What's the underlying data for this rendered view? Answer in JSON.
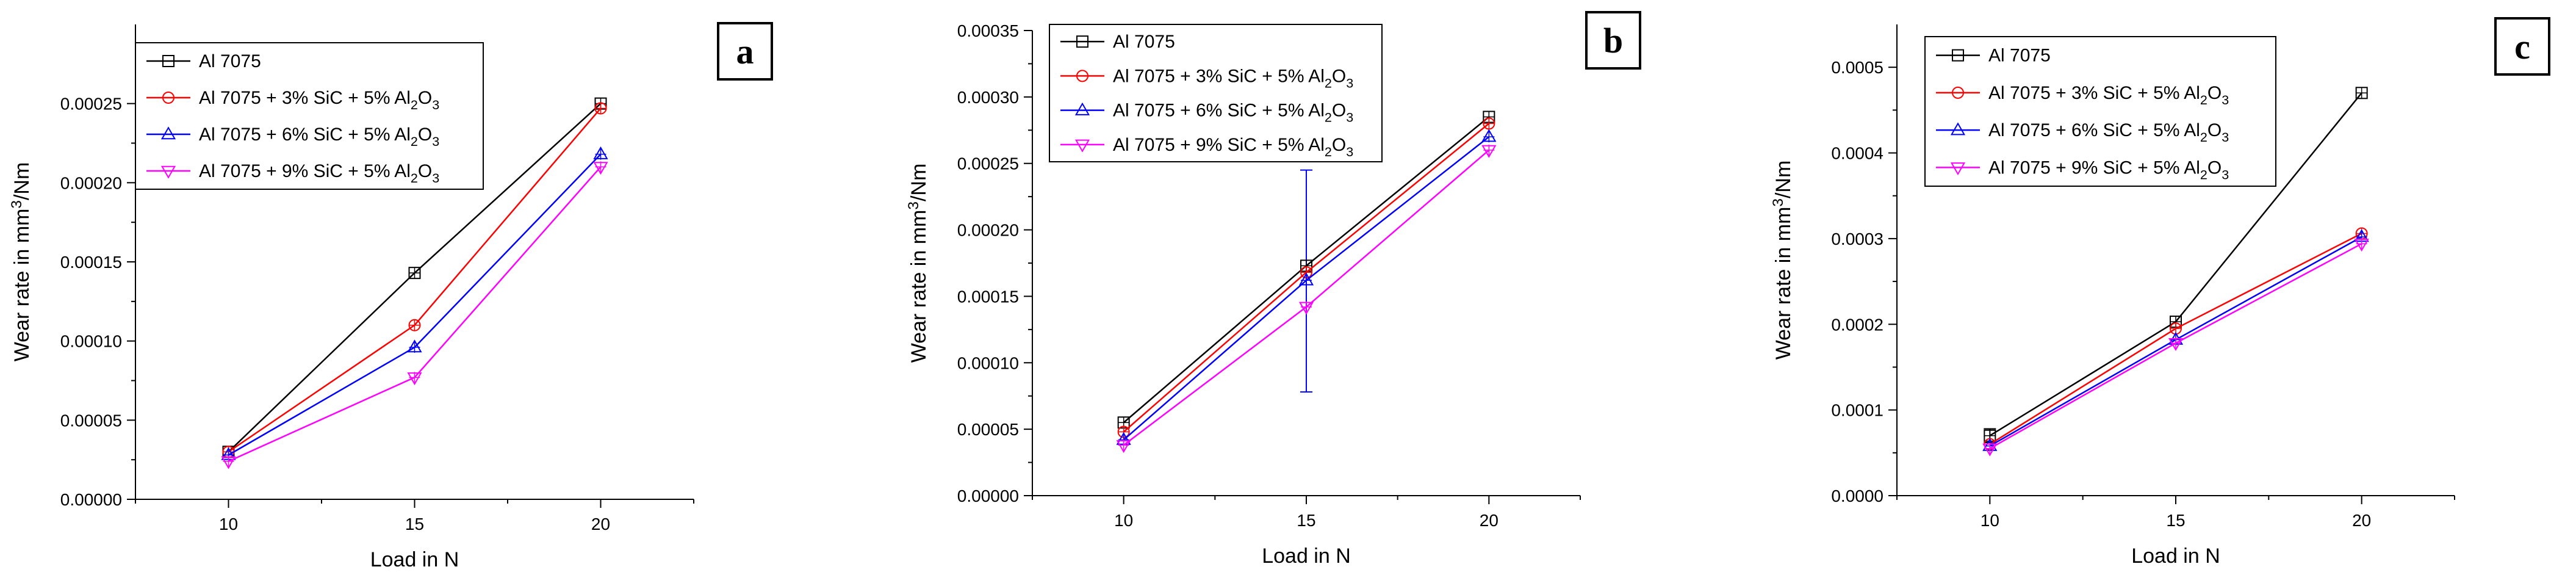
{
  "figure": {
    "series_names": [
      "Al 7075",
      "Al 7075 + 3% SiC + 5% Al2O3",
      "Al 7075 + 6% SiC + 5% Al2O3",
      "Al 7075 + 9% SiC + 5% Al2O3"
    ],
    "series_colors": [
      "#000000",
      "#ff0000",
      "#0000ff",
      "#ff00ff"
    ],
    "series_markers": [
      "square",
      "circle",
      "triangle-up",
      "triangle-down"
    ]
  },
  "chart_data": [
    {
      "panel_label": "a",
      "type": "line",
      "xlabel": "Load in N",
      "ylabel": "Wear rate in mm3/Nm",
      "xlim": [
        7.5,
        22.5
      ],
      "ylim": [
        0,
        0.0003
      ],
      "x_ticks": [
        10,
        15,
        20
      ],
      "y_ticks": [
        0,
        5e-05,
        0.0001,
        0.00015,
        0.0002,
        0.00025
      ],
      "y_tick_labels": [
        "0.00000",
        "0.00005",
        "0.00010",
        "0.00015",
        "0.00020",
        "0.00025"
      ],
      "legend_position": "top-left",
      "x": [
        10,
        15,
        20
      ],
      "series": [
        {
          "name": "Al 7075",
          "values": [
            3e-05,
            0.000143,
            0.00025
          ]
        },
        {
          "name": "Al 7075 + 3% SiC + 5% Al2O3",
          "values": [
            3e-05,
            0.00011,
            0.000247
          ]
        },
        {
          "name": "Al 7075 + 6% SiC + 5% Al2O3",
          "values": [
            2.8e-05,
            9.6e-05,
            0.000218
          ]
        },
        {
          "name": "Al 7075 + 9% SiC + 5% Al2O3",
          "values": [
            2.4e-05,
            7.7e-05,
            0.00021
          ]
        }
      ],
      "error_bars": []
    },
    {
      "panel_label": "b",
      "type": "line",
      "xlabel": "Load in N",
      "ylabel": "Wear rate in mm3/Nm",
      "xlim": [
        7.5,
        22.5
      ],
      "ylim": [
        0,
        0.00035
      ],
      "x_ticks": [
        10,
        15,
        20
      ],
      "y_ticks": [
        0,
        5e-05,
        0.0001,
        0.00015,
        0.0002,
        0.00025,
        0.0003,
        0.00035
      ],
      "y_tick_labels": [
        "0.00000",
        "0.00005",
        "0.00010",
        "0.00015",
        "0.00020",
        "0.00025",
        "0.00030",
        "0.00035"
      ],
      "legend_position": "top-left",
      "x": [
        10,
        15,
        20
      ],
      "series": [
        {
          "name": "Al 7075",
          "values": [
            5.5e-05,
            0.000173,
            0.000285
          ]
        },
        {
          "name": "Al 7075 + 3% SiC + 5% Al2O3",
          "values": [
            4.8e-05,
            0.000168,
            0.00028
          ]
        },
        {
          "name": "Al 7075 + 6% SiC + 5% Al2O3",
          "values": [
            4.2e-05,
            0.000162,
            0.00027
          ]
        },
        {
          "name": "Al 7075 + 9% SiC + 5% Al2O3",
          "values": [
            3.8e-05,
            0.000142,
            0.00026
          ]
        }
      ],
      "error_bars": [
        {
          "series": "Al 7075 + 6% SiC + 5% Al2O3",
          "x": 15,
          "low": 7.8e-05,
          "high": 0.000245
        }
      ]
    },
    {
      "panel_label": "c",
      "type": "line",
      "xlabel": "Load in N",
      "ylabel": "Wear rate in mm3/Nm",
      "xlim": [
        7.5,
        22.5
      ],
      "ylim": [
        0,
        0.00055
      ],
      "x_ticks": [
        10,
        15,
        20
      ],
      "y_ticks": [
        0,
        0.0001,
        0.0002,
        0.0003,
        0.0004,
        0.0005
      ],
      "y_tick_labels": [
        "0.0000",
        "0.0001",
        "0.0002",
        "0.0003",
        "0.0004",
        "0.0005"
      ],
      "legend_position": "top-left",
      "x": [
        10,
        15,
        20
      ],
      "series": [
        {
          "name": "Al 7075",
          "values": [
            7e-05,
            0.000203,
            0.00047
          ]
        },
        {
          "name": "Al 7075 + 3% SiC + 5% Al2O3",
          "values": [
            6e-05,
            0.000195,
            0.000306
          ]
        },
        {
          "name": "Al 7075 + 6% SiC + 5% Al2O3",
          "values": [
            5.8e-05,
            0.000182,
            0.000302
          ]
        },
        {
          "name": "Al 7075 + 9% SiC + 5% Al2O3",
          "values": [
            5.5e-05,
            0.000178,
            0.000294
          ]
        }
      ],
      "error_bars": [
        {
          "series": "Al 7075",
          "x": 10,
          "low": 6.2e-05,
          "high": 7.8e-05
        }
      ]
    }
  ]
}
